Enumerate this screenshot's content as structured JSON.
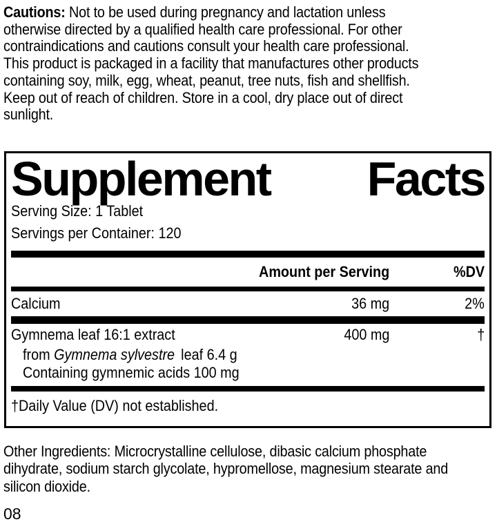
{
  "colors": {
    "text": "#000000",
    "background": "#ffffff"
  },
  "cautions": {
    "label": "Cautions:",
    "lines": [
      " Not to be used during pregnancy and lactation unless",
      "otherwise directed by a qualified health care professional. For other",
      "contraindications and cautions consult your health care professional.",
      "This product is packaged in a facility that manufactures other products",
      "containing soy, milk, egg, wheat, peanut, tree nuts, fish and shellfish.",
      "Keep out of reach of children. Store in a cool, dry place out of direct",
      "sunlight."
    ]
  },
  "panel": {
    "title_word1": "Supplement",
    "title_word2": "Facts",
    "serving_size": "Serving Size: 1 Tablet",
    "servings_per_container": "Servings per Container: 120",
    "header": {
      "amount": "Amount per Serving",
      "dv": "%DV"
    },
    "rows": [
      {
        "name": "Calcium",
        "amount": "36 mg",
        "dv": "2%"
      },
      {
        "name": "Gymnema leaf 16:1 extract",
        "amount": "400 mg",
        "dv": "†",
        "sub1_prefix": "from ",
        "sub1_italic": "Gymnema sylvestre",
        "sub1_suffix": " leaf 6.4 g",
        "sub2": "Containing gymnemic acids 100 mg"
      }
    ],
    "footnote": "†Daily Value (DV) not established."
  },
  "other_ingredients": {
    "lines": [
      "Other Ingredients: Microcrystalline cellulose, dibasic calcium phosphate",
      "dihydrate, sodium starch glycolate, hypromellose, magnesium stearate and",
      "silicon dioxide."
    ]
  },
  "footer_code": "08"
}
